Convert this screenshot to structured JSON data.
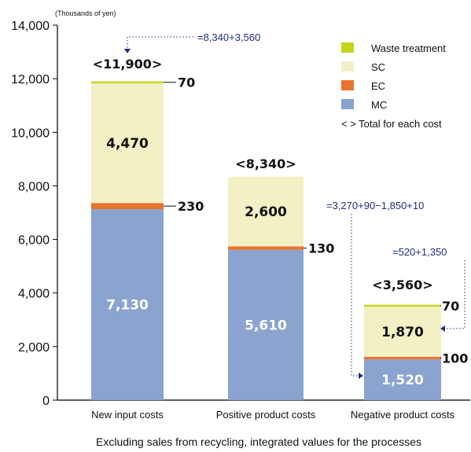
{
  "chart_data": {
    "type": "bar",
    "stacked": true,
    "unit": "(Thousands of yen)",
    "ylim": [
      0,
      14000
    ],
    "yticks": [
      0,
      2000,
      4000,
      6000,
      8000,
      10000,
      12000,
      14000
    ],
    "ytick_labels": [
      "0",
      "2,000",
      "4,000",
      "6,000",
      "8,000",
      "10,000",
      "12,000",
      "14,000"
    ],
    "categories": [
      "New input costs",
      "Positive product costs",
      "Negative product costs"
    ],
    "series": [
      {
        "name": "MC",
        "color": "#8aa3cf",
        "values": [
          7130,
          5610,
          1520
        ],
        "labels": [
          "7,130",
          "5,610",
          "1,520"
        ]
      },
      {
        "name": "EC",
        "color": "#e8732e",
        "values": [
          230,
          130,
          100
        ],
        "labels": [
          "230",
          "130",
          "100"
        ]
      },
      {
        "name": "SC",
        "color": "#f2f0c4",
        "values": [
          4470,
          2600,
          1870
        ],
        "labels": [
          "4,470",
          "2,600",
          "1,870"
        ]
      },
      {
        "name": "Waste treatment",
        "color": "#c4d41c",
        "values": [
          70,
          0,
          70
        ],
        "labels": [
          "70",
          "",
          "70"
        ]
      }
    ],
    "totals": [
      "<11,900>",
      "<8,340>",
      "<3,560>"
    ],
    "annotations": {
      "eq1": "=8,340+3,560",
      "eq2": "=3,270+90−1,850+10",
      "eq3": "=520+1,350"
    },
    "legend": {
      "position": "top-right",
      "items": [
        "Waste treatment",
        "SC",
        "EC",
        "MC"
      ],
      "total_note": "< >  Total for each cost"
    },
    "footnote": "Excluding sales from recycling, integrated values for the processes",
    "grid": false
  }
}
